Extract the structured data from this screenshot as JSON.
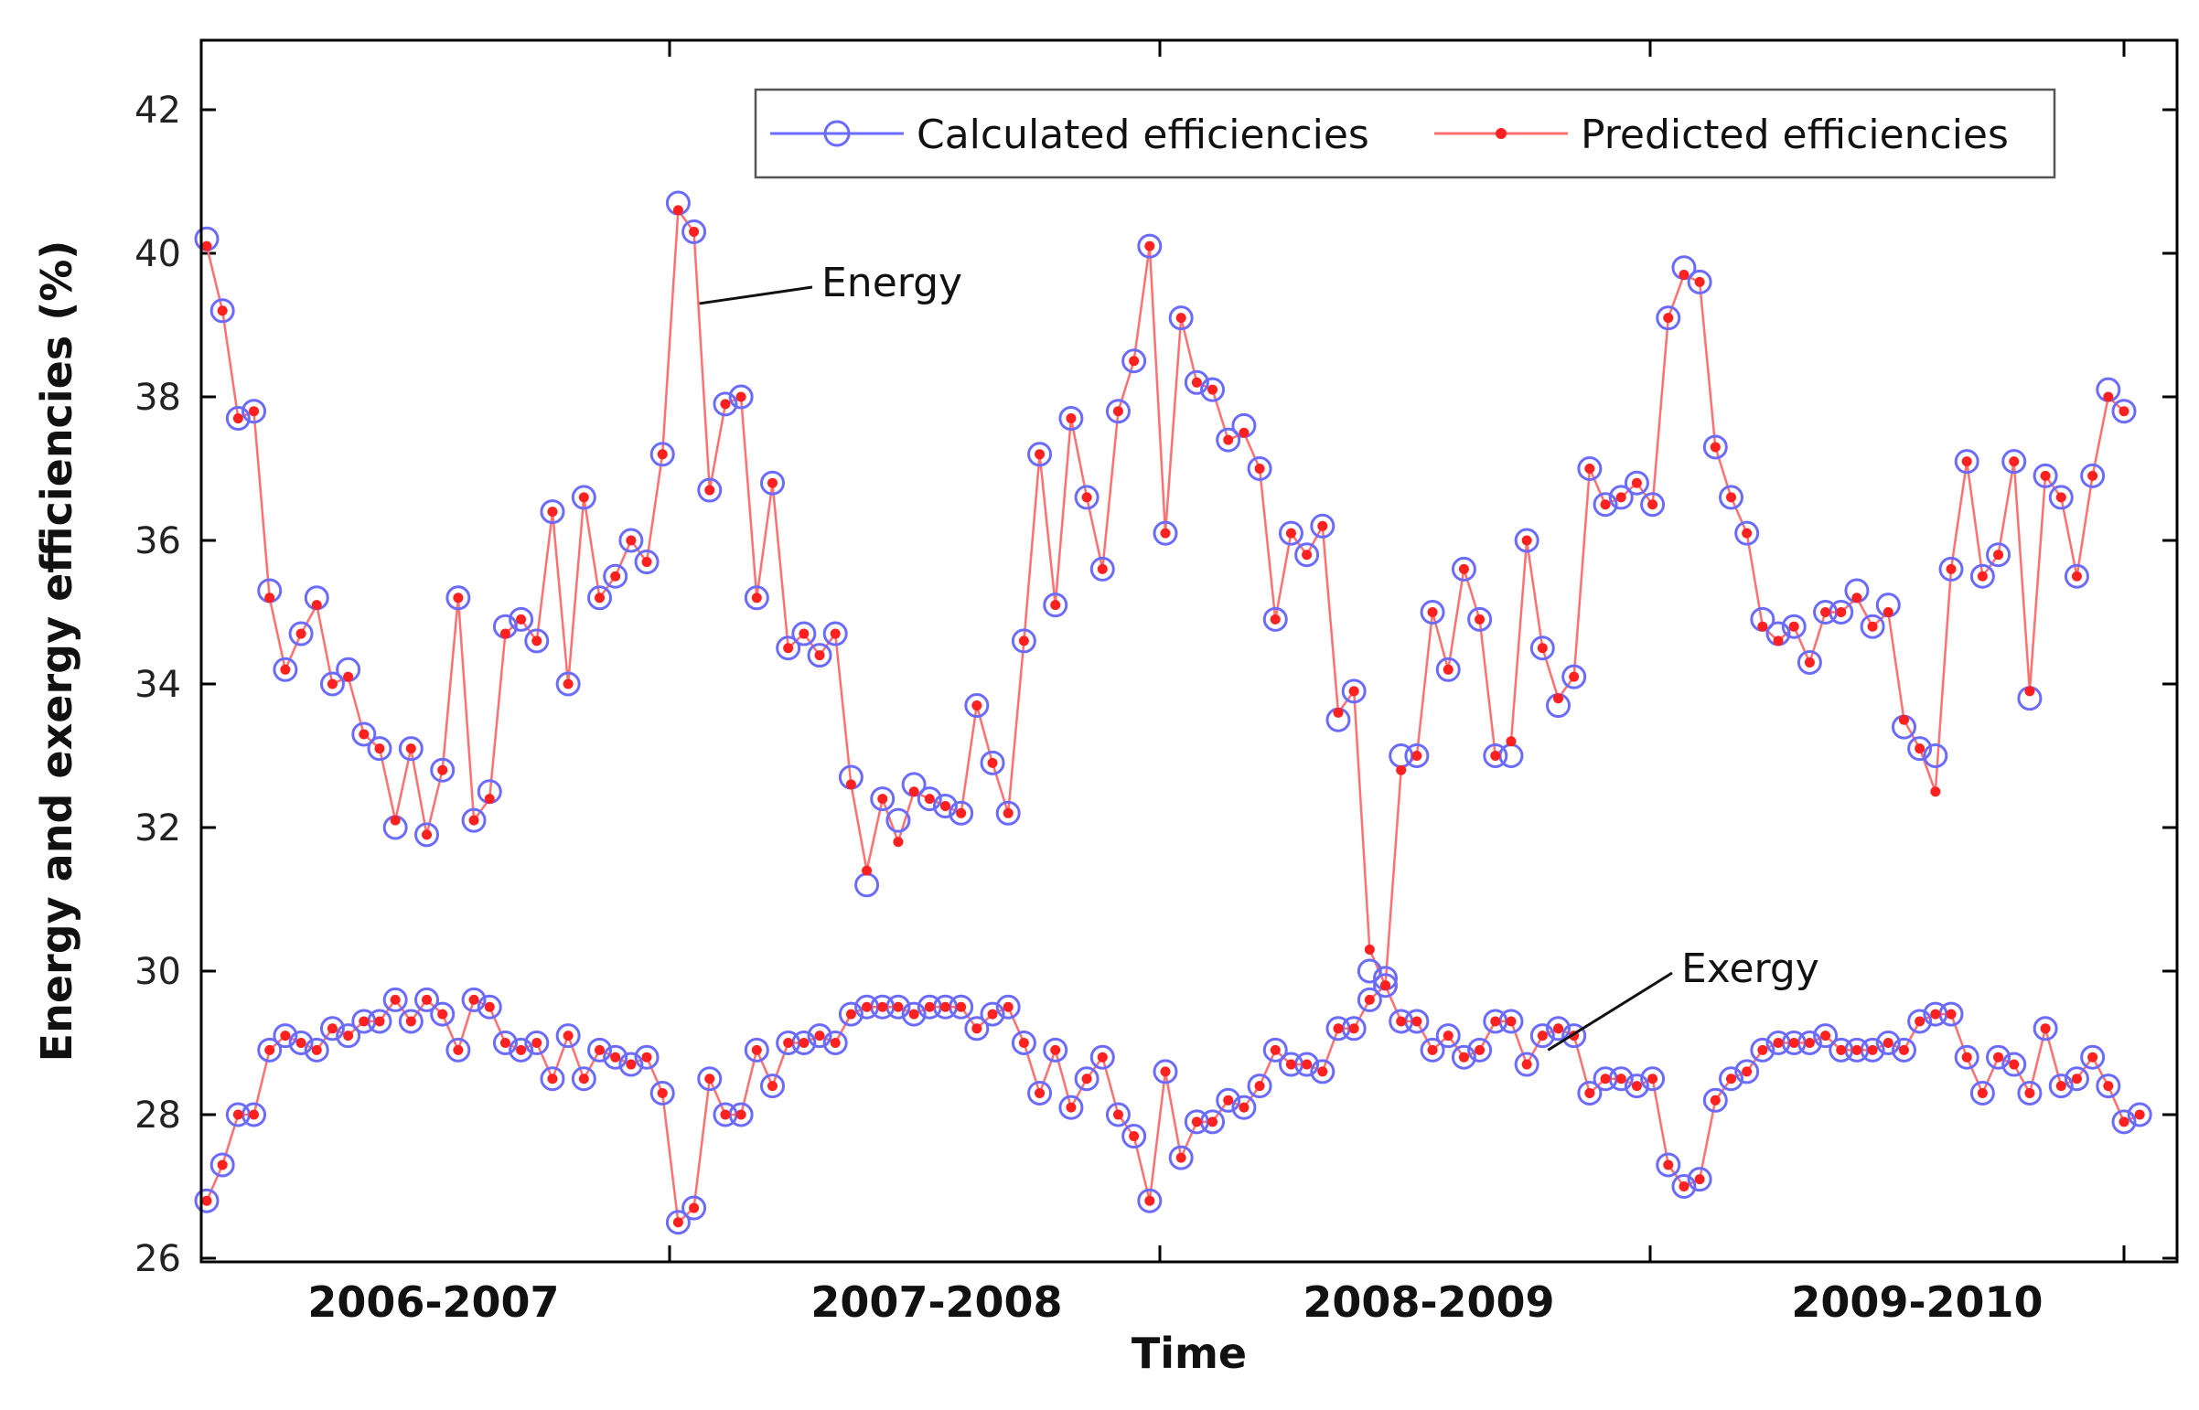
{
  "chart_data": {
    "type": "line",
    "title": "",
    "xlabel": "Time",
    "ylabel": "Energy and exergy efficiencies (%)",
    "ylim": [
      26,
      43
    ],
    "yticks": [
      26,
      28,
      30,
      32,
      34,
      36,
      38,
      40,
      42
    ],
    "period_labels": [
      "2006-2007",
      "2007-2008",
      "2008-2009",
      "2009-2010"
    ],
    "grid": false,
    "legend": {
      "position": "top-right",
      "entries": [
        "Calculated efficiencies",
        "Predicted efficiencies"
      ]
    },
    "colors": {
      "calculated": "#6b6bff",
      "predicted": "#ff2020",
      "line": "#ff7070",
      "axis": "#000000"
    },
    "annotations": [
      {
        "text": "Energy",
        "series": "energy",
        "point_index": 31
      },
      {
        "text": "Exergy",
        "series": "exergy",
        "point_index": 85
      }
    ],
    "series": [
      {
        "name": "Energy",
        "calculated": [
          40.2,
          39.2,
          37.7,
          37.8,
          35.3,
          34.2,
          34.7,
          35.2,
          34.0,
          34.2,
          33.3,
          33.1,
          32.0,
          33.1,
          31.9,
          32.8,
          35.2,
          32.1,
          32.5,
          34.8,
          34.9,
          34.6,
          36.4,
          34.0,
          36.6,
          35.2,
          35.5,
          36.0,
          35.7,
          37.2,
          40.7,
          40.3,
          36.7,
          37.9,
          38.0,
          35.2,
          36.8,
          34.5,
          34.7,
          34.4,
          34.7,
          32.7,
          31.2,
          32.4,
          32.1,
          32.6,
          32.4,
          32.3,
          32.2,
          33.7,
          32.9,
          32.2,
          34.6,
          37.2,
          35.1,
          37.7,
          36.6,
          35.6,
          37.8,
          38.5,
          40.1,
          36.1,
          39.1,
          38.2,
          38.1,
          37.4,
          37.6,
          37.0,
          34.9,
          36.1,
          35.8,
          36.2,
          33.5,
          33.9,
          30.0,
          29.9,
          33.0,
          33.0,
          35.0,
          34.2,
          35.6,
          34.9,
          33.0,
          33.0,
          36.0,
          34.5,
          33.7,
          34.1,
          37.0,
          36.5,
          36.6,
          36.8,
          36.5,
          39.1,
          39.8,
          39.6,
          37.3,
          36.6,
          36.1,
          34.9,
          34.7,
          34.8,
          34.3,
          35.0,
          35.0,
          35.3,
          34.8,
          35.1,
          33.4,
          33.1,
          33.0,
          35.6,
          37.1,
          35.5,
          35.8,
          37.1,
          33.8,
          36.9,
          36.6,
          35.5,
          36.9,
          38.1,
          37.8
        ],
        "predicted": [
          40.1,
          39.2,
          37.7,
          37.8,
          35.2,
          34.2,
          34.7,
          35.1,
          34.0,
          34.1,
          33.3,
          33.1,
          32.1,
          33.1,
          31.9,
          32.8,
          35.2,
          32.1,
          32.4,
          34.7,
          34.9,
          34.6,
          36.4,
          34.0,
          36.6,
          35.2,
          35.5,
          36.0,
          35.7,
          37.2,
          40.6,
          40.3,
          36.7,
          37.9,
          38.0,
          35.2,
          36.8,
          34.5,
          34.7,
          34.4,
          34.7,
          32.6,
          31.4,
          32.4,
          31.8,
          32.5,
          32.4,
          32.3,
          32.2,
          33.7,
          32.9,
          32.2,
          34.6,
          37.2,
          35.1,
          37.7,
          36.6,
          35.6,
          37.8,
          38.5,
          40.1,
          36.1,
          39.1,
          38.2,
          38.1,
          37.4,
          37.5,
          37.0,
          34.9,
          36.1,
          35.8,
          36.2,
          33.6,
          33.9,
          30.3,
          29.8,
          32.8,
          33.0,
          35.0,
          34.2,
          35.6,
          34.9,
          33.0,
          33.2,
          36.0,
          34.5,
          33.8,
          34.1,
          37.0,
          36.5,
          36.6,
          36.8,
          36.5,
          39.1,
          39.7,
          39.6,
          37.3,
          36.6,
          36.1,
          34.8,
          34.6,
          34.8,
          34.3,
          35.0,
          35.0,
          35.2,
          34.8,
          35.0,
          33.5,
          33.1,
          32.5,
          35.6,
          37.1,
          35.5,
          35.8,
          37.1,
          33.9,
          36.9,
          36.6,
          35.5,
          36.9,
          38.0,
          37.8
        ]
      },
      {
        "name": "Exergy",
        "calculated": [
          26.8,
          27.3,
          28.0,
          28.0,
          28.9,
          29.1,
          29.0,
          28.9,
          29.2,
          29.1,
          29.3,
          29.3,
          29.6,
          29.3,
          29.6,
          29.4,
          28.9,
          29.6,
          29.5,
          29.0,
          28.9,
          29.0,
          28.5,
          29.1,
          28.5,
          28.9,
          28.8,
          28.7,
          28.8,
          28.3,
          26.5,
          26.7,
          28.5,
          28.0,
          28.0,
          28.9,
          28.4,
          29.0,
          29.0,
          29.1,
          29.0,
          29.4,
          29.5,
          29.5,
          29.5,
          29.4,
          29.5,
          29.5,
          29.5,
          29.2,
          29.4,
          29.5,
          29.0,
          28.3,
          28.9,
          28.1,
          28.5,
          28.8,
          28.0,
          27.7,
          26.8,
          28.6,
          27.4,
          27.9,
          27.9,
          28.2,
          28.1,
          28.4,
          28.9,
          28.7,
          28.7,
          28.6,
          29.2,
          29.2,
          29.6,
          29.8,
          29.3,
          29.3,
          28.9,
          29.1,
          28.8,
          28.9,
          29.3,
          29.3,
          28.7,
          29.1,
          29.2,
          29.1,
          28.3,
          28.5,
          28.5,
          28.4,
          28.5,
          27.3,
          27.0,
          27.1,
          28.2,
          28.5,
          28.6,
          28.9,
          29.0,
          29.0,
          29.0,
          29.1,
          28.9,
          28.9,
          28.9,
          29.0,
          28.9,
          29.3,
          29.4,
          29.4,
          28.8,
          28.3,
          28.8,
          28.7,
          28.3,
          29.2,
          28.4,
          28.5,
          28.8,
          28.4,
          27.9,
          28.0
        ]
      }
    ]
  }
}
